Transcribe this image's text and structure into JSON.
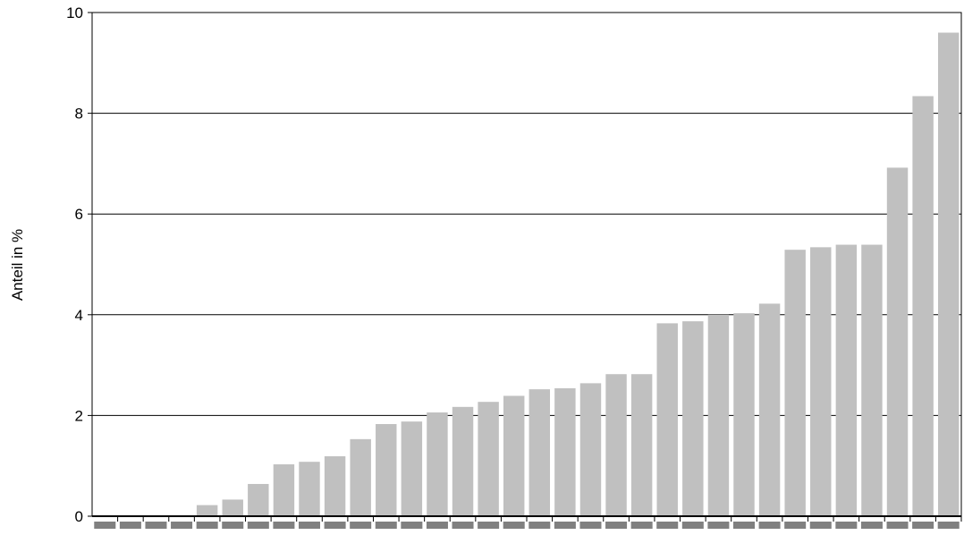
{
  "chart_data": {
    "type": "bar",
    "title": "",
    "xlabel": "",
    "ylabel": "Anteil in %",
    "ylim": [
      0,
      10
    ],
    "yticks": [
      0,
      2,
      4,
      6,
      8,
      10
    ],
    "grid": true,
    "categories": [
      "",
      "",
      "",
      "",
      "",
      "",
      "",
      "",
      "",
      "",
      "",
      "",
      "",
      "",
      "",
      "",
      "",
      "",
      "",
      "",
      "",
      "",
      "",
      "",
      "",
      "",
      "",
      "",
      "",
      "",
      "",
      "",
      "",
      ""
    ],
    "values": [
      0.0,
      0.0,
      0.0,
      0.0,
      0.22,
      0.33,
      0.64,
      1.03,
      1.08,
      1.19,
      1.53,
      1.83,
      1.88,
      2.06,
      2.17,
      2.27,
      2.39,
      2.52,
      2.54,
      2.64,
      2.82,
      2.82,
      3.83,
      3.87,
      4.0,
      4.03,
      4.22,
      5.29,
      5.34,
      5.39,
      5.39,
      6.92,
      8.34,
      9.6
    ],
    "colors": {
      "bar": "#c0c0c0",
      "axis": "#000000",
      "grid": "#000000",
      "tick_placeholder": "#808080"
    }
  }
}
